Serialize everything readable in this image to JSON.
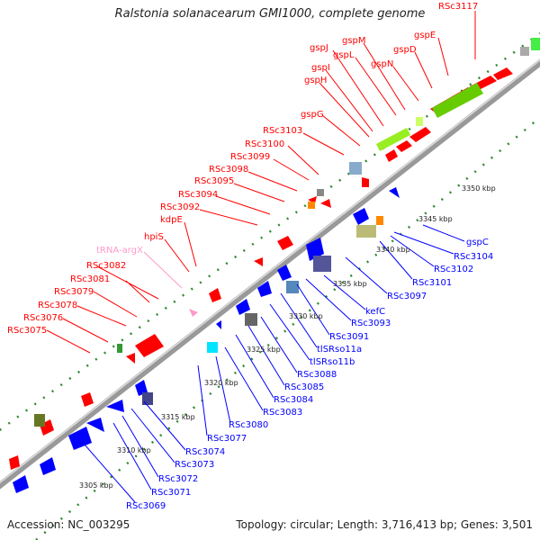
{
  "title": "Ralstonia solanacearum GMI1000, complete genome",
  "accession": "Accession: NC_003295",
  "summary": "Topology: circular; Length: 3,716,413 bp; Genes: 3,501",
  "colors": {
    "forward": "#ff0000",
    "reverse": "#0000ff",
    "rna": "#ff99cc",
    "backbone": "#999999",
    "dots": "#2e8b2e"
  },
  "ticks": [
    "3305 kbp",
    "3310 kbp",
    "3315 kbp",
    "3320 kbp",
    "3325 kbp",
    "3330 kbp",
    "3335 kbp",
    "3340 kbp",
    "3345 kbp",
    "3350 kbp"
  ],
  "forward_labels": [
    "RSc3117",
    "gspE",
    "gspD",
    "gspN",
    "gspM",
    "gspL",
    "gspJ",
    "gspI",
    "gspH",
    "gspG",
    "RSc3103",
    "RSc3100",
    "RSc3099",
    "RSc3098",
    "RSc3095",
    "RSc3094",
    "RSc3092",
    "kdpE",
    "hpiS",
    "tRNA-argX",
    "RSc3082",
    "RSc3081",
    "RSc3079",
    "RSc3078",
    "RSc3076",
    "RSc3075"
  ],
  "reverse_labels": [
    "gspC",
    "RSc3104",
    "RSc3102",
    "RSc3101",
    "RSc3097",
    "kefC",
    "RSc3093",
    "RSc3091",
    "tlSRso11a",
    "tlSRso11b",
    "RSc3088",
    "RSc3085",
    "RSc3084",
    "RSc3083",
    "RSc3080",
    "RSc3077",
    "RSc3074",
    "RSc3073",
    "RSc3072",
    "RSc3071",
    "RSc3069"
  ]
}
